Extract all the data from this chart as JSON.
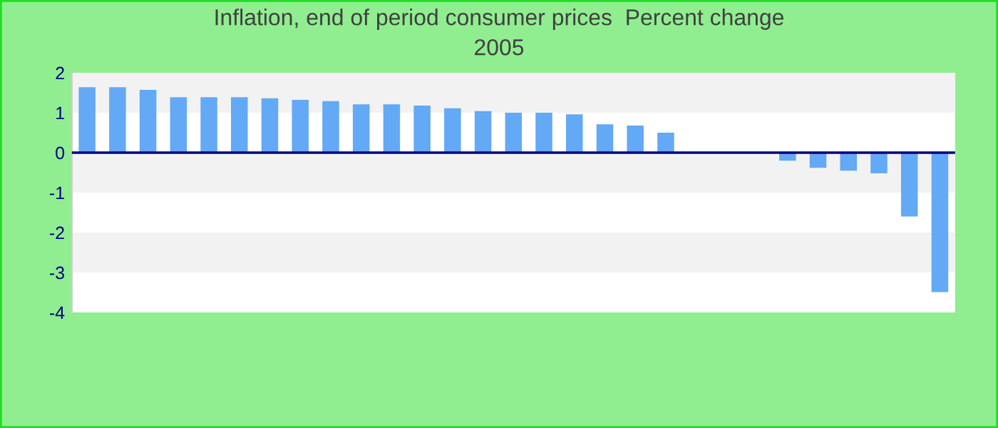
{
  "chart_data": {
    "type": "bar",
    "title": "Inflation, end of period consumer prices  Percent change",
    "subtitle": "2005",
    "categories": [
      null,
      null,
      null,
      null,
      null,
      null,
      null,
      null,
      null,
      null,
      null,
      null,
      null,
      null,
      null,
      null,
      null,
      null,
      null,
      null,
      null,
      null,
      null,
      null,
      null,
      null,
      null,
      null,
      null
    ],
    "values": [
      1.64,
      1.64,
      1.57,
      1.39,
      1.39,
      1.39,
      1.36,
      1.32,
      1.29,
      1.21,
      1.21,
      1.18,
      1.11,
      1.04,
      1.0,
      1.0,
      0.96,
      0.71,
      0.68,
      0.5,
      0,
      0,
      0,
      -0.2,
      -0.38,
      -0.45,
      -0.52,
      -1.6,
      -3.49
    ],
    "color": "#63a9f5",
    "ylim": [
      -4,
      2
    ],
    "yticks": [
      -4,
      -3,
      -2,
      -1,
      0,
      1,
      2
    ],
    "legend": false,
    "ref_lines": [
      {
        "axis": "y",
        "value": 0,
        "label": null,
        "color": "#000080"
      }
    ],
    "bands": [
      {
        "axis": "y",
        "from": 1,
        "to": 2,
        "label": null,
        "color": "#f2f2f2"
      },
      {
        "axis": "y",
        "from": -1,
        "to": 0,
        "label": null,
        "color": "#f2f2f2"
      },
      {
        "axis": "y",
        "from": -3,
        "to": -2,
        "label": null,
        "color": "#f2f2f2"
      }
    ]
  }
}
